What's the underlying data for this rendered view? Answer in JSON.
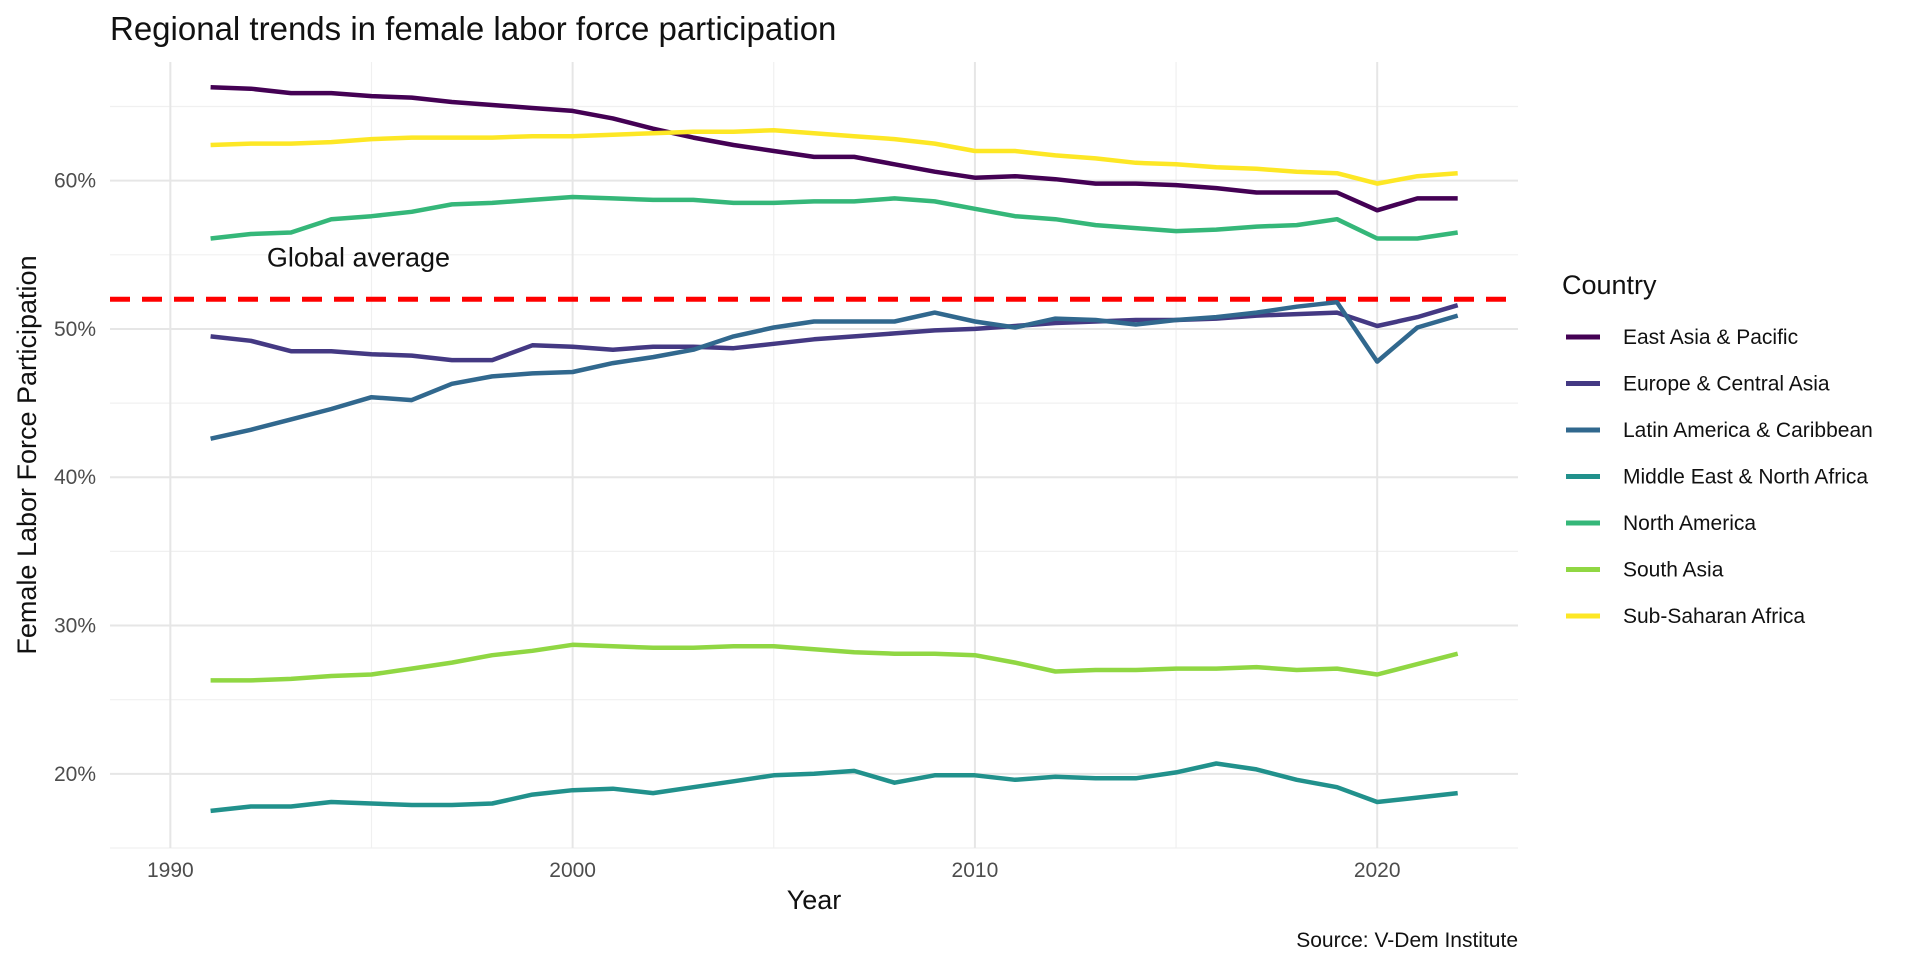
{
  "chart_data": {
    "type": "line",
    "title": "Regional trends in female labor force participation",
    "xlabel": "Year",
    "ylabel": "Female Labor Force Participation",
    "caption": "Source: V-Dem Institute",
    "xlim": [
      1990,
      2022
    ],
    "ylim": [
      15,
      68
    ],
    "x_ticks": [
      1990,
      2000,
      2010,
      2020
    ],
    "y_ticks": [
      20,
      30,
      40,
      50,
      60
    ],
    "y_tick_labels": [
      "20%",
      "30%",
      "40%",
      "50%",
      "60%"
    ],
    "grid": true,
    "legend": {
      "title": "Country",
      "position": "right"
    },
    "reference_line": {
      "value": 52,
      "label": "Global average",
      "color": "#ff0000",
      "style": "dashed"
    },
    "x": [
      1991,
      1992,
      1993,
      1994,
      1995,
      1996,
      1997,
      1998,
      1999,
      2000,
      2001,
      2002,
      2003,
      2004,
      2005,
      2006,
      2007,
      2008,
      2009,
      2010,
      2011,
      2012,
      2013,
      2014,
      2015,
      2016,
      2017,
      2018,
      2019,
      2020,
      2021,
      2022
    ],
    "series": [
      {
        "name": "East Asia & Pacific",
        "color": "#440154",
        "values": [
          66.3,
          66.2,
          65.9,
          65.9,
          65.7,
          65.6,
          65.3,
          65.1,
          64.9,
          64.7,
          64.2,
          63.5,
          62.9,
          62.4,
          62.0,
          61.6,
          61.6,
          61.1,
          60.6,
          60.2,
          60.3,
          60.1,
          59.8,
          59.8,
          59.7,
          59.5,
          59.2,
          59.2,
          59.2,
          58.0,
          58.8,
          58.8
        ]
      },
      {
        "name": "Europe & Central Asia",
        "color": "#443983",
        "values": [
          49.5,
          49.2,
          48.5,
          48.5,
          48.3,
          48.2,
          47.9,
          47.9,
          48.9,
          48.8,
          48.6,
          48.8,
          48.8,
          48.7,
          49.0,
          49.3,
          49.5,
          49.7,
          49.9,
          50.0,
          50.2,
          50.4,
          50.5,
          50.6,
          50.6,
          50.7,
          50.9,
          51.0,
          51.1,
          50.2,
          50.8,
          51.6
        ]
      },
      {
        "name": "Latin America & Caribbean",
        "color": "#31688e",
        "values": [
          42.6,
          43.2,
          43.9,
          44.6,
          45.4,
          45.2,
          46.3,
          46.8,
          47.0,
          47.1,
          47.7,
          48.1,
          48.6,
          49.5,
          50.1,
          50.5,
          50.5,
          50.5,
          51.1,
          50.5,
          50.1,
          50.7,
          50.6,
          50.3,
          50.6,
          50.8,
          51.1,
          51.5,
          51.8,
          47.8,
          50.1,
          50.9
        ]
      },
      {
        "name": "Middle East & North Africa",
        "color": "#21918c",
        "values": [
          17.5,
          17.8,
          17.8,
          18.1,
          18.0,
          17.9,
          17.9,
          18.0,
          18.6,
          18.9,
          19.0,
          18.7,
          19.1,
          19.5,
          19.9,
          20.0,
          20.2,
          19.4,
          19.9,
          19.9,
          19.6,
          19.8,
          19.7,
          19.7,
          20.1,
          20.7,
          20.3,
          19.6,
          19.1,
          18.1,
          18.4,
          18.7
        ]
      },
      {
        "name": "North America",
        "color": "#35b779",
        "values": [
          56.1,
          56.4,
          56.5,
          57.4,
          57.6,
          57.9,
          58.4,
          58.5,
          58.7,
          58.9,
          58.8,
          58.7,
          58.7,
          58.5,
          58.5,
          58.6,
          58.6,
          58.8,
          58.6,
          58.1,
          57.6,
          57.4,
          57.0,
          56.8,
          56.6,
          56.7,
          56.9,
          57.0,
          57.4,
          56.1,
          56.1,
          56.5
        ]
      },
      {
        "name": "South Asia",
        "color": "#90d743",
        "values": [
          26.3,
          26.3,
          26.4,
          26.6,
          26.7,
          27.1,
          27.5,
          28.0,
          28.3,
          28.7,
          28.6,
          28.5,
          28.5,
          28.6,
          28.6,
          28.4,
          28.2,
          28.1,
          28.1,
          28.0,
          27.5,
          26.9,
          27.0,
          27.0,
          27.1,
          27.1,
          27.2,
          27.0,
          27.1,
          26.7,
          27.4,
          28.1
        ]
      },
      {
        "name": "Sub-Saharan Africa",
        "color": "#fde725",
        "values": [
          62.4,
          62.5,
          62.5,
          62.6,
          62.8,
          62.9,
          62.9,
          62.9,
          63.0,
          63.0,
          63.1,
          63.2,
          63.3,
          63.3,
          63.4,
          63.2,
          63.0,
          62.8,
          62.5,
          62.0,
          62.0,
          61.7,
          61.5,
          61.2,
          61.1,
          60.9,
          60.8,
          60.6,
          60.5,
          59.8,
          60.3,
          60.5
        ]
      }
    ]
  }
}
